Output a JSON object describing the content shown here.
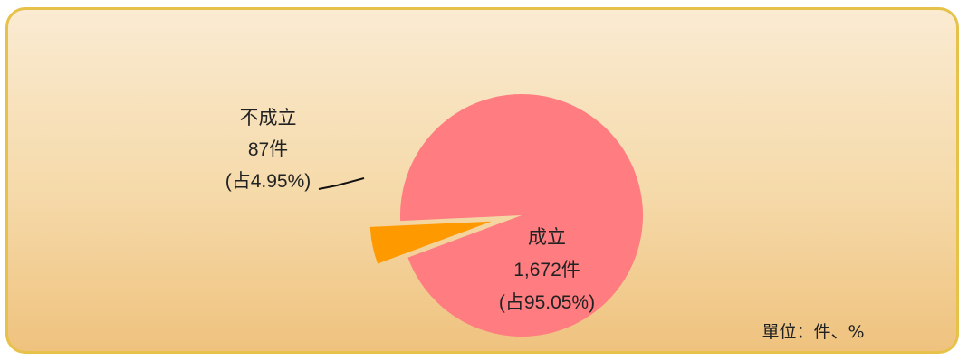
{
  "unit_label": "單位：件、%",
  "chart_data": {
    "type": "pie",
    "title": "",
    "slices": [
      {
        "label": "成立",
        "count": "1,672件",
        "share": "(占95.05%)",
        "value": 1672,
        "percent": 95.05,
        "color": "#ff7c80",
        "exploded": false
      },
      {
        "label": "不成立",
        "count": "87件",
        "share": "(占4.95%)",
        "value": 87,
        "percent": 4.95,
        "color": "#ff9900",
        "exploded": true
      }
    ],
    "legend": "none"
  }
}
